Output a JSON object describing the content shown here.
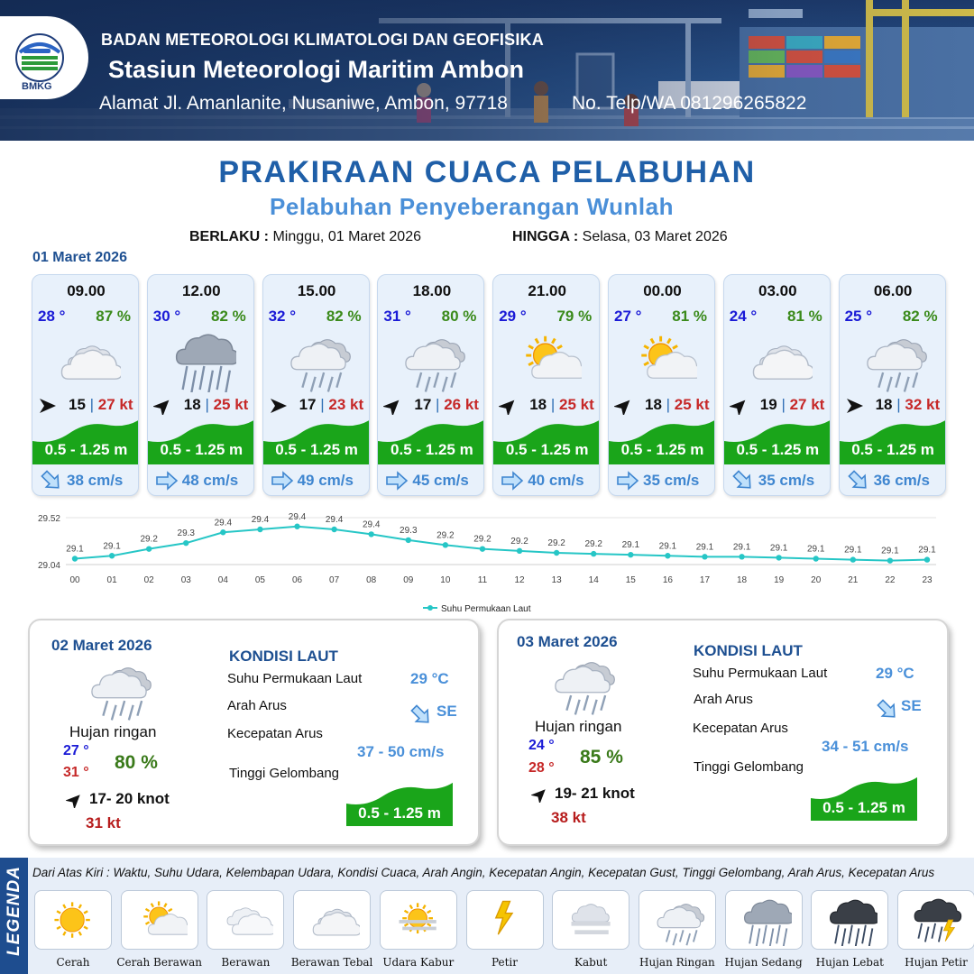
{
  "header": {
    "org": "BADAN METEOROLOGI KLIMATOLOGI DAN GEOFISIKA",
    "station": "Stasiun Meteorologi Maritim Ambon",
    "address": "Alamat Jl. Amanlanite, Nusaniwe, Ambon, 97718",
    "tel": "No. Telp/WA  081296265822",
    "logo_text": "BMKG"
  },
  "title": "PRAKIRAAN CUACA PELABUHAN",
  "subtitle": "Pelabuhan Penyeberangan Wunlah",
  "validity": {
    "from_label": "BERLAKU :",
    "from_value": "Minggu, 01 Maret 2026",
    "to_label": "HINGGA :",
    "to_value": "Selasa, 03 Maret 2026"
  },
  "day1": {
    "date": "01 Maret 2026",
    "hours": [
      {
        "time": "09.00",
        "temp": "28 °",
        "hum": "87 %",
        "icon": "berawan-tebal-icon",
        "wind_dir": "E",
        "wind": "15",
        "gust": "27 kt",
        "wave": "0.5 - 1.25 m",
        "cur_dir": "SE",
        "current": "38 cm/s"
      },
      {
        "time": "12.00",
        "temp": "30 °",
        "hum": "82 %",
        "icon": "hujan-sedang-icon",
        "wind_dir": "NE",
        "wind": "18",
        "gust": "25 kt",
        "wave": "0.5 - 1.25 m",
        "cur_dir": "E",
        "current": "48 cm/s"
      },
      {
        "time": "15.00",
        "temp": "32 °",
        "hum": "82 %",
        "icon": "hujan-ringan-icon",
        "wind_dir": "E",
        "wind": "17",
        "gust": "23 kt",
        "wave": "0.5 - 1.25 m",
        "cur_dir": "E",
        "current": "49 cm/s"
      },
      {
        "time": "18.00",
        "temp": "31 °",
        "hum": "80 %",
        "icon": "hujan-ringan-icon",
        "wind_dir": "NE",
        "wind": "17",
        "gust": "26 kt",
        "wave": "0.5 - 1.25 m",
        "cur_dir": "E",
        "current": "45 cm/s"
      },
      {
        "time": "21.00",
        "temp": "29 °",
        "hum": "79 %",
        "icon": "cerah-berawan-icon",
        "wind_dir": "NE",
        "wind": "18",
        "gust": "25 kt",
        "wave": "0.5 - 1.25 m",
        "cur_dir": "E",
        "current": "40 cm/s"
      },
      {
        "time": "00.00",
        "temp": "27 °",
        "hum": "81 %",
        "icon": "cerah-berawan-icon",
        "wind_dir": "NE",
        "wind": "18",
        "gust": "25 kt",
        "wave": "0.5 - 1.25 m",
        "cur_dir": "E",
        "current": "35 cm/s"
      },
      {
        "time": "03.00",
        "temp": "24 °",
        "hum": "81 %",
        "icon": "berawan-tebal-icon",
        "wind_dir": "NE",
        "wind": "19",
        "gust": "27 kt",
        "wave": "0.5 - 1.25 m",
        "cur_dir": "SE",
        "current": "35 cm/s"
      },
      {
        "time": "06.00",
        "temp": "25 °",
        "hum": "82 %",
        "icon": "hujan-ringan-icon",
        "wind_dir": "E",
        "wind": "18",
        "gust": "32 kt",
        "wave": "0.5 - 1.25 m",
        "cur_dir": "SE",
        "current": "36 cm/s"
      }
    ]
  },
  "chart_data": {
    "type": "line",
    "series": [
      {
        "name": "Suhu Permukaan Laut",
        "values": [
          29.1,
          29.1,
          29.2,
          29.3,
          29.4,
          29.4,
          29.4,
          29.4,
          29.4,
          29.3,
          29.2,
          29.2,
          29.2,
          29.2,
          29.2,
          29.1,
          29.1,
          29.1,
          29.1,
          29.1,
          29.1,
          29.1,
          29.1,
          29.1
        ]
      }
    ],
    "actual": [
      29.1,
      29.13,
      29.2,
      29.26,
      29.37,
      29.4,
      29.43,
      29.4,
      29.35,
      29.29,
      29.24,
      29.2,
      29.18,
      29.16,
      29.15,
      29.14,
      29.13,
      29.12,
      29.12,
      29.11,
      29.1,
      29.09,
      29.08,
      29.09
    ],
    "categories": [
      "00",
      "01",
      "02",
      "03",
      "04",
      "05",
      "06",
      "07",
      "08",
      "09",
      "10",
      "11",
      "12",
      "13",
      "14",
      "15",
      "16",
      "17",
      "18",
      "19",
      "20",
      "21",
      "22",
      "23"
    ],
    "ylim": [
      29.04,
      29.52
    ],
    "yticks": [
      "29.52",
      "29.04"
    ],
    "color": "#26c6c6",
    "legend": "bottom"
  },
  "days": [
    {
      "date": "02 Maret 2026",
      "icon": "hujan-ringan-icon",
      "condition": "Hujan ringan",
      "tmin": "27 °",
      "tmax": "31 °",
      "hum": "80 %",
      "wind": "17- 20 knot",
      "gust": "31 kt",
      "sea_head": "KONDISI LAUT",
      "sst_label": "Suhu Permukaan Laut",
      "sst": "29 °C",
      "dir_label": "Arah Arus",
      "dir": "SE",
      "speed_label": "Kecepatan Arus",
      "speed": "37 - 50 cm/s",
      "wave_label": "Tinggi Gelombang",
      "wave": "0.5 - 1.25 m"
    },
    {
      "date": "03 Maret 2026",
      "icon": "hujan-ringan-icon",
      "condition": "Hujan ringan",
      "tmin": "24 °",
      "tmax": "28 °",
      "hum": "85 %",
      "wind": "19- 21 knot",
      "gust": "38 kt",
      "sea_head": "KONDISI LAUT",
      "sst_label": "Suhu Permukaan Laut",
      "sst": "29 °C",
      "dir_label": "Arah Arus",
      "dir": "SE",
      "speed_label": "Kecepatan Arus",
      "speed": "34 - 51 cm/s",
      "wave_label": "Tinggi Gelombang",
      "wave": "0.5 - 1.25 m"
    }
  ],
  "legend": {
    "tab": "LEGENDA",
    "description": "Dari Atas Kiri : Waktu, Suhu Udara, Kelembapan Udara, Kondisi Cuaca, Arah Angin, Kecepatan Angin, Kecepatan Gust, Tinggi Gelombang, Arah Arus, Kecepatan Arus",
    "items": [
      {
        "name": "Cerah",
        "icon": "cerah-icon"
      },
      {
        "name": "Cerah Berawan",
        "icon": "cerah-berawan-icon"
      },
      {
        "name": "Berawan",
        "icon": "berawan-icon"
      },
      {
        "name": "Berawan Tebal",
        "icon": "berawan-tebal-icon"
      },
      {
        "name": "Udara Kabur",
        "icon": "udara-kabur-icon"
      },
      {
        "name": "Petir",
        "icon": "petir-icon"
      },
      {
        "name": "Kabut",
        "icon": "kabut-icon"
      },
      {
        "name": "Hujan Ringan",
        "icon": "hujan-ringan-icon"
      },
      {
        "name": "Hujan Sedang",
        "icon": "hujan-sedang-icon"
      },
      {
        "name": "Hujan Lebat",
        "icon": "hujan-lebat-icon"
      },
      {
        "name": "Hujan Petir",
        "icon": "hujan-petir-icon"
      }
    ]
  },
  "colors": {
    "title": "#1f5fa8",
    "wave": "#1aa51a",
    "temp": "#1a1ad6",
    "humidity": "#3a8a1a",
    "gust": "#c62828",
    "current": "#3f86d0"
  }
}
